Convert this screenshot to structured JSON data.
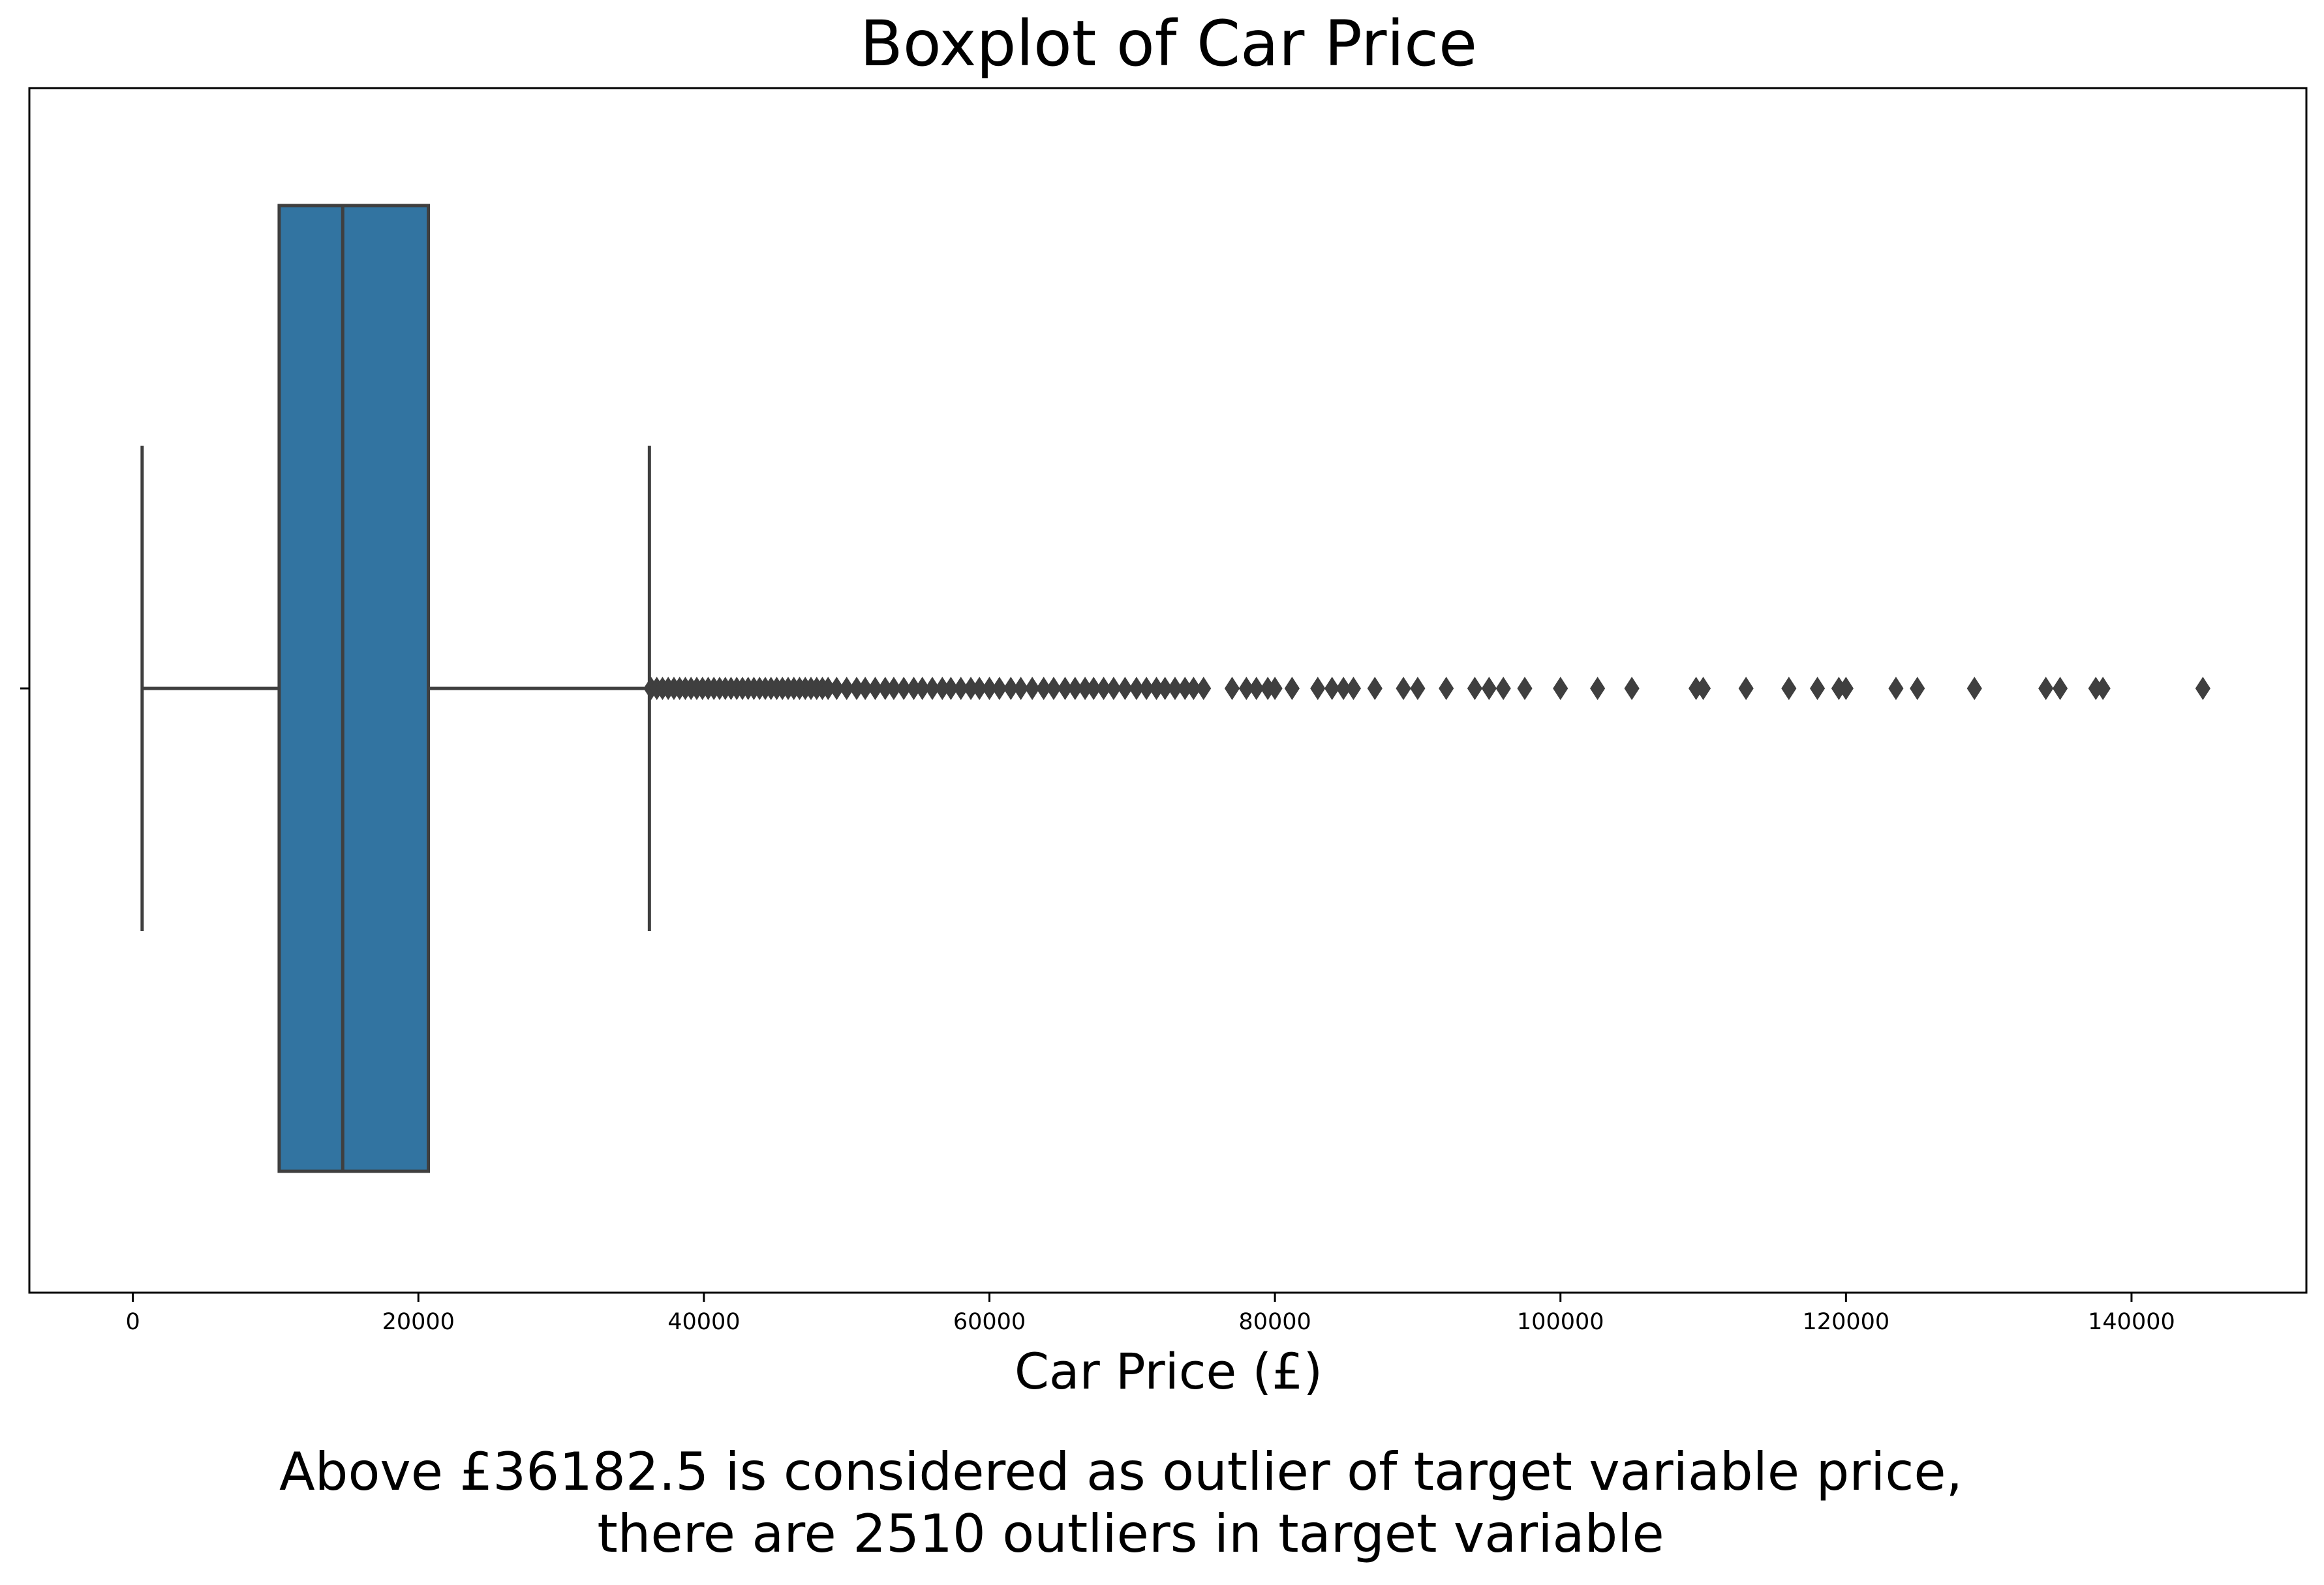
{
  "chart_data": {
    "type": "box",
    "title": "Boxplot of Car Price",
    "xlabel": "Car Price (£)",
    "ylabel": "",
    "orientation": "horizontal",
    "xlim": [
      -7250,
      152250
    ],
    "xticks": [
      0,
      20000,
      40000,
      60000,
      80000,
      100000,
      120000,
      140000
    ],
    "xtick_labels": [
      "0",
      "20000",
      "40000",
      "60000",
      "80000",
      "100000",
      "120000",
      "140000"
    ],
    "grid": false,
    "box_color": "#3274a1",
    "line_color": "#3f3f3f",
    "series": [
      {
        "whisker_low": 650,
        "q1": 10250,
        "median": 14700,
        "q3": 20700,
        "whisker_high": 36182.5,
        "outliers": [
          36300,
          36700,
          37100,
          37500,
          37900,
          38300,
          38700,
          39100,
          39500,
          39900,
          40300,
          40700,
          41100,
          41500,
          41900,
          42300,
          42700,
          43100,
          43500,
          43900,
          44300,
          44700,
          45100,
          45500,
          45900,
          46300,
          46700,
          47100,
          47500,
          47900,
          48300,
          48700,
          49300,
          50000,
          50700,
          51300,
          52000,
          52700,
          53300,
          54000,
          54700,
          55300,
          56000,
          56700,
          57300,
          58000,
          58700,
          59300,
          60000,
          60700,
          61500,
          62200,
          63000,
          63800,
          64500,
          65300,
          66000,
          66700,
          67300,
          68000,
          68700,
          69500,
          70300,
          71000,
          71700,
          72300,
          73000,
          73700,
          74300,
          75000,
          77000,
          78000,
          78700,
          79500,
          80000,
          81200,
          83000,
          84000,
          84800,
          85500,
          87000,
          89000,
          90000,
          92000,
          94000,
          95000,
          96000,
          97500,
          100000,
          102600,
          105000,
          109500,
          110000,
          113000,
          116000,
          118000,
          119500,
          120000,
          123500,
          125000,
          129000,
          134000,
          135000,
          137500,
          138000,
          145000
        ]
      }
    ],
    "annotation": [
      "Above £36182.5 is considered as outlier of target variable price,",
      "there are 2510 outliers in target variable"
    ]
  }
}
